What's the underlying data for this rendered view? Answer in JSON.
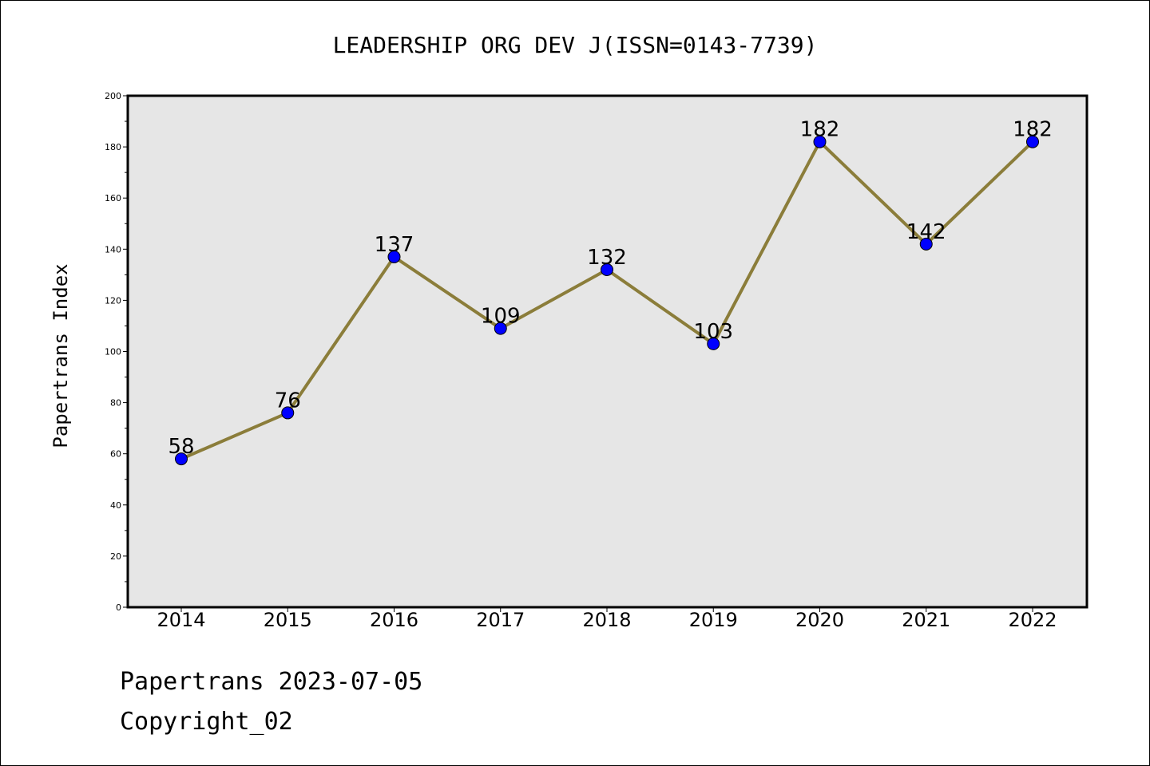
{
  "chart_data": {
    "type": "line",
    "title": "LEADERSHIP ORG DEV J(ISSN=0143-7739)",
    "xlabel": "",
    "ylabel": "Papertrans Index",
    "categories": [
      "2014",
      "2015",
      "2016",
      "2017",
      "2018",
      "2019",
      "2020",
      "2021",
      "2022"
    ],
    "values": [
      58,
      76,
      137,
      109,
      132,
      103,
      182,
      142,
      182
    ],
    "ylim": [
      0,
      200
    ],
    "yticks": [
      0,
      20,
      40,
      60,
      80,
      100,
      120,
      140,
      160,
      180,
      200
    ],
    "grid": false,
    "colors": {
      "line": "#8b7d3a",
      "marker": "#0000ff",
      "plot_background": "#e6e6e6"
    }
  },
  "footer": {
    "line1": "Papertrans 2023-07-05",
    "line2": "Copyright_02"
  }
}
